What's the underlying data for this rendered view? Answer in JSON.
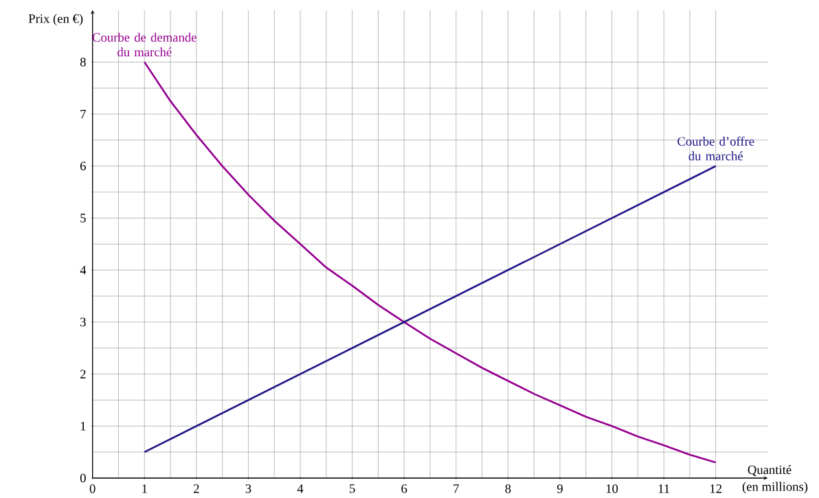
{
  "chart_data": {
    "type": "line",
    "xlabel": "Quantité",
    "annotations": [
      "(en millions)"
    ],
    "ylabel": "Prix (en €)",
    "xlim": [
      0,
      13
    ],
    "ylim": [
      0,
      9
    ],
    "xticks": [
      0,
      1,
      2,
      3,
      4,
      5,
      6,
      7,
      8,
      9,
      10,
      11,
      12
    ],
    "yticks": [
      0,
      1,
      2,
      3,
      4,
      5,
      6,
      7,
      8
    ],
    "grid": true,
    "line_style": "solid",
    "series": [
      {
        "name": "Courbe de demande du marché",
        "color": "#960090",
        "x": [
          1,
          1.5,
          2,
          2.5,
          3,
          3.5,
          4,
          4.5,
          5,
          5.5,
          6,
          6.5,
          7,
          7.5,
          8,
          8.5,
          9,
          9.5,
          10,
          10.5,
          11,
          11.5,
          12
        ],
        "values": [
          8,
          7.25,
          6.6,
          6.0,
          5.45,
          4.95,
          4.5,
          4.05,
          3.7,
          3.33,
          3,
          2.68,
          2.4,
          2.12,
          1.87,
          1.62,
          1.4,
          1.18,
          1.0,
          0.8,
          0.63,
          0.45,
          0.3
        ]
      },
      {
        "name": "Courbe d’offre du marché",
        "color": "#201685",
        "x": [
          1,
          12
        ],
        "values": [
          0.5,
          6
        ]
      }
    ]
  }
}
